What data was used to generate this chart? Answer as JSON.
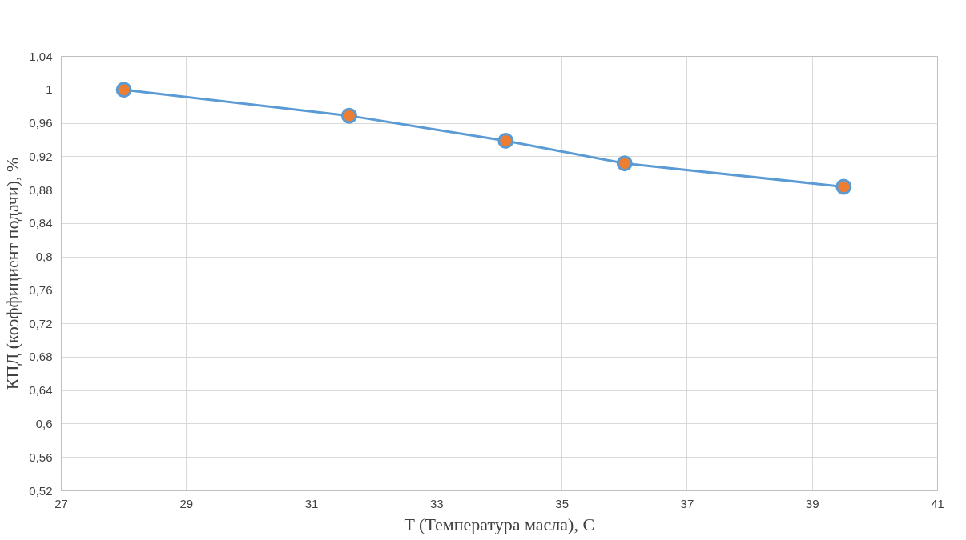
{
  "chart_data": {
    "type": "line",
    "xlabel": "T (Температура масла), С",
    "ylabel": "КПД (коэффициент подачи), %",
    "x": [
      28,
      31.6,
      34.1,
      36,
      39.5
    ],
    "series": [
      {
        "color": "#5b9bd5",
        "colors": [
          "#ed7d31",
          "#ed7d31",
          "#ed7d31",
          "#ed7d31",
          "#ed7d31"
        ],
        "values": [
          1.0,
          0.969,
          0.939,
          0.912,
          0.884
        ]
      }
    ],
    "xlim": [
      27,
      41
    ],
    "xticks": [
      27,
      29,
      31,
      33,
      35,
      37,
      39,
      41
    ],
    "ylim": [
      0.52,
      1.04
    ],
    "yticks": [
      {
        "value": 0.52,
        "label": "0,52"
      },
      {
        "value": 0.56,
        "label": "0,56"
      },
      {
        "value": 0.6,
        "label": "0,6"
      },
      {
        "value": 0.64,
        "label": "0,64"
      },
      {
        "value": 0.68,
        "label": "0,68"
      },
      {
        "value": 0.72,
        "label": "0,72"
      },
      {
        "value": 0.76,
        "label": "0,76"
      },
      {
        "value": 0.8,
        "label": "0,8"
      },
      {
        "value": 0.84,
        "label": "0,84"
      },
      {
        "value": 0.88,
        "label": "0,88"
      },
      {
        "value": 0.92,
        "label": "0,92"
      },
      {
        "value": 0.96,
        "label": "0,96"
      },
      {
        "value": 1.0,
        "label": "1"
      },
      {
        "value": 1.04,
        "label": "1,04"
      }
    ],
    "grid": true,
    "marker": "circle",
    "line_style": "solid"
  }
}
